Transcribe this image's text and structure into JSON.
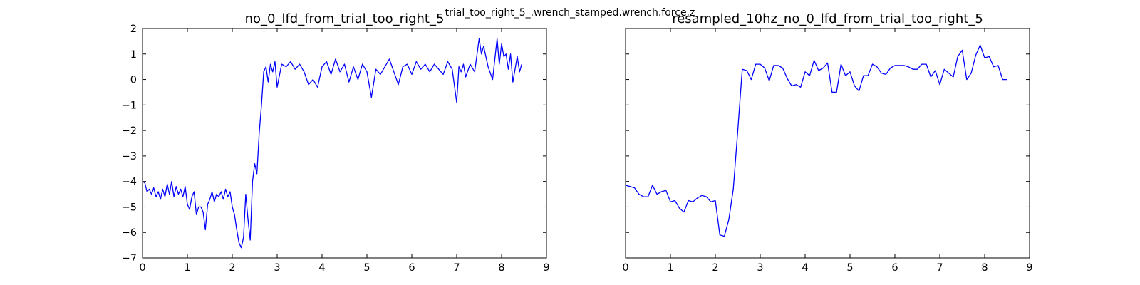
{
  "figure": {
    "suptitle": "trial_too_right_5_.wrench_stamped.wrench.force.z"
  },
  "chart_data": [
    {
      "type": "line",
      "title": "no_0_lfd_from_trial_too_right_5",
      "xlabel": "",
      "ylabel": "",
      "xlim": [
        0,
        9
      ],
      "ylim": [
        -7,
        2
      ],
      "xticks": [
        "0",
        "1",
        "2",
        "3",
        "4",
        "5",
        "6",
        "7",
        "8",
        "9"
      ],
      "yticks": [
        "2",
        "1",
        "0",
        "−1",
        "−2",
        "−3",
        "−4",
        "−5",
        "−6",
        "−7"
      ],
      "grid": false,
      "color": "#0000ff",
      "series": [
        {
          "x": [
            0.0,
            0.05,
            0.1,
            0.15,
            0.2,
            0.25,
            0.3,
            0.35,
            0.4,
            0.45,
            0.5,
            0.55,
            0.6,
            0.65,
            0.7,
            0.75,
            0.8,
            0.85,
            0.9,
            0.95,
            1.0,
            1.05,
            1.1,
            1.15,
            1.2,
            1.25,
            1.3,
            1.35,
            1.4,
            1.45,
            1.5,
            1.55,
            1.6,
            1.65,
            1.7,
            1.75,
            1.8,
            1.85,
            1.9,
            1.95,
            2.0,
            2.05,
            2.1,
            2.15,
            2.2,
            2.25,
            2.3,
            2.35,
            2.4,
            2.45,
            2.5,
            2.55,
            2.6,
            2.65,
            2.7,
            2.75,
            2.8,
            2.85,
            2.9,
            2.95,
            3.0,
            3.1,
            3.2,
            3.3,
            3.4,
            3.5,
            3.6,
            3.7,
            3.8,
            3.9,
            4.0,
            4.1,
            4.2,
            4.3,
            4.4,
            4.5,
            4.6,
            4.7,
            4.8,
            4.9,
            5.0,
            5.1,
            5.2,
            5.3,
            5.4,
            5.5,
            5.6,
            5.7,
            5.8,
            5.9,
            6.0,
            6.1,
            6.2,
            6.3,
            6.4,
            6.5,
            6.6,
            6.7,
            6.8,
            6.9,
            7.0,
            7.05,
            7.1,
            7.15,
            7.2,
            7.3,
            7.4,
            7.5,
            7.55,
            7.6,
            7.7,
            7.8,
            7.9,
            7.95,
            8.0,
            8.05,
            8.1,
            8.15,
            8.2,
            8.25,
            8.3,
            8.35,
            8.4,
            8.45
          ],
          "y": [
            -4.0,
            -4.05,
            -4.4,
            -4.3,
            -4.5,
            -4.25,
            -4.6,
            -4.4,
            -4.7,
            -4.3,
            -4.6,
            -4.1,
            -4.5,
            -4.0,
            -4.6,
            -4.2,
            -4.5,
            -4.3,
            -4.6,
            -4.2,
            -4.9,
            -5.1,
            -4.6,
            -4.4,
            -5.3,
            -5.0,
            -5.0,
            -5.2,
            -5.9,
            -4.9,
            -4.7,
            -4.4,
            -4.8,
            -4.5,
            -4.6,
            -4.4,
            -4.7,
            -4.3,
            -4.6,
            -4.4,
            -5.0,
            -5.3,
            -5.9,
            -6.4,
            -6.6,
            -6.2,
            -4.5,
            -5.5,
            -6.3,
            -4.0,
            -3.3,
            -3.7,
            -2.1,
            -1.0,
            0.3,
            0.5,
            -0.1,
            0.6,
            0.3,
            0.7,
            -0.3,
            0.6,
            0.5,
            0.7,
            0.4,
            0.6,
            0.3,
            -0.2,
            0.0,
            -0.3,
            0.5,
            0.7,
            0.2,
            0.8,
            0.3,
            0.6,
            -0.1,
            0.5,
            0.0,
            0.6,
            0.3,
            -0.7,
            0.4,
            0.2,
            0.5,
            0.8,
            0.3,
            -0.2,
            0.5,
            0.6,
            0.2,
            0.7,
            0.4,
            0.6,
            0.3,
            0.6,
            0.4,
            0.2,
            0.7,
            0.4,
            -0.9,
            0.5,
            0.3,
            0.6,
            0.1,
            0.6,
            0.3,
            1.6,
            1.0,
            1.3,
            0.5,
            0.0,
            1.6,
            0.6,
            1.4,
            0.9,
            1.0,
            0.4,
            1.0,
            -0.1,
            0.4,
            0.9,
            0.3,
            0.6
          ]
        }
      ]
    },
    {
      "type": "line",
      "title": "resampled_10hz_no_0_lfd_from_trial_too_right_5",
      "xlabel": "",
      "ylabel": "",
      "xlim": [
        0,
        9
      ],
      "ylim": [
        -7,
        2
      ],
      "xticks": [
        "0",
        "1",
        "2",
        "3",
        "4",
        "5",
        "6",
        "7",
        "8",
        "9"
      ],
      "yticks": [],
      "grid": false,
      "color": "#0000ff",
      "series": [
        {
          "x": [
            0.0,
            0.1,
            0.2,
            0.3,
            0.4,
            0.5,
            0.6,
            0.7,
            0.8,
            0.9,
            1.0,
            1.1,
            1.2,
            1.3,
            1.4,
            1.5,
            1.6,
            1.7,
            1.8,
            1.9,
            2.0,
            2.1,
            2.2,
            2.3,
            2.4,
            2.5,
            2.6,
            2.7,
            2.8,
            2.9,
            3.0,
            3.1,
            3.2,
            3.3,
            3.4,
            3.5,
            3.6,
            3.7,
            3.8,
            3.9,
            4.0,
            4.1,
            4.2,
            4.3,
            4.4,
            4.5,
            4.6,
            4.7,
            4.8,
            4.9,
            5.0,
            5.1,
            5.2,
            5.3,
            5.4,
            5.5,
            5.6,
            5.7,
            5.8,
            5.9,
            6.0,
            6.1,
            6.2,
            6.3,
            6.4,
            6.5,
            6.6,
            6.7,
            6.8,
            6.9,
            7.0,
            7.1,
            7.2,
            7.3,
            7.4,
            7.5,
            7.6,
            7.7,
            7.8,
            7.9,
            8.0,
            8.1,
            8.2,
            8.3,
            8.4,
            8.5
          ],
          "y": [
            -4.15,
            -4.2,
            -4.25,
            -4.5,
            -4.6,
            -4.6,
            -4.15,
            -4.5,
            -4.4,
            -4.35,
            -4.8,
            -4.75,
            -5.05,
            -5.2,
            -4.75,
            -4.8,
            -4.65,
            -4.55,
            -4.6,
            -4.8,
            -4.75,
            -6.1,
            -6.15,
            -5.5,
            -4.3,
            -2.0,
            0.4,
            0.35,
            0.0,
            0.6,
            0.6,
            0.45,
            -0.05,
            0.55,
            0.55,
            0.45,
            0.05,
            -0.25,
            -0.2,
            -0.3,
            0.3,
            0.15,
            0.75,
            0.35,
            0.45,
            0.65,
            -0.5,
            -0.5,
            0.6,
            0.15,
            0.3,
            -0.25,
            -0.45,
            0.15,
            0.15,
            0.6,
            0.5,
            0.25,
            0.2,
            0.45,
            0.55,
            0.55,
            0.55,
            0.5,
            0.4,
            0.4,
            0.6,
            0.6,
            0.1,
            0.35,
            -0.2,
            0.4,
            0.25,
            0.1,
            0.9,
            1.15,
            0.0,
            0.25,
            0.95,
            1.35,
            0.85,
            0.9,
            0.5,
            0.55,
            0.0,
            0.0
          ]
        }
      ]
    }
  ]
}
